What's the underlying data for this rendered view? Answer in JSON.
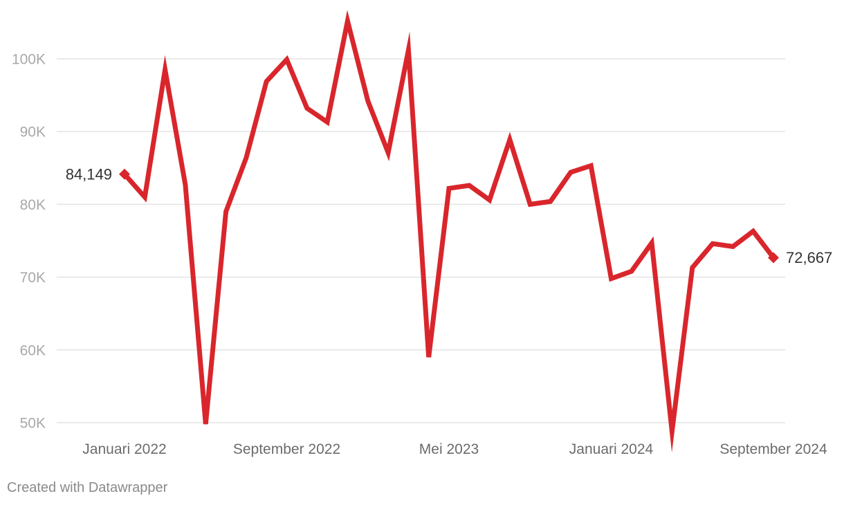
{
  "chart_data": {
    "type": "line",
    "x": [
      "2022-01",
      "2022-02",
      "2022-03",
      "2022-04",
      "2022-05",
      "2022-06",
      "2022-07",
      "2022-08",
      "2022-09",
      "2022-10",
      "2022-11",
      "2022-12",
      "2023-01",
      "2023-02",
      "2023-03",
      "2023-04",
      "2023-05",
      "2023-06",
      "2023-07",
      "2023-08",
      "2023-09",
      "2023-10",
      "2023-11",
      "2023-12",
      "2024-01",
      "2024-02",
      "2024-03",
      "2024-04",
      "2024-05",
      "2024-06",
      "2024-07",
      "2024-08",
      "2024-09"
    ],
    "series": [
      {
        "color": "#d9262c",
        "values": [
          84149,
          81000,
          98500,
          82700,
          49800,
          79000,
          86400,
          96900,
          99900,
          93200,
          91300,
          105200,
          94200,
          87100,
          101200,
          59000,
          82200,
          82600,
          80600,
          88900,
          80000,
          80400,
          84400,
          85300,
          69800,
          70800,
          74700,
          48800,
          71300,
          74600,
          74200,
          76300,
          72667
        ]
      }
    ],
    "xlabel": "",
    "ylabel": "",
    "x_tick_labels": [
      {
        "label": "Januari 2022",
        "x": "2022-01"
      },
      {
        "label": "September 2022",
        "x": "2022-09"
      },
      {
        "label": "Mei 2023",
        "x": "2023-05"
      },
      {
        "label": "Januari 2024",
        "x": "2024-01"
      },
      {
        "label": "September 2024",
        "x": "2024-09"
      }
    ],
    "y_ticks": [
      50000,
      60000,
      70000,
      80000,
      90000,
      100000
    ],
    "y_tick_labels": [
      "50K",
      "60K",
      "70K",
      "80K",
      "90K",
      "100K"
    ],
    "ylim": [
      48000,
      106000
    ],
    "grid": true,
    "annotations": [
      {
        "label": "84,149",
        "x": "2022-01",
        "y": 84149,
        "side": "left"
      },
      {
        "label": "72,667",
        "x": "2024-09",
        "y": 72667,
        "side": "right"
      }
    ]
  },
  "footer": {
    "credit": "Created with Datawrapper"
  }
}
